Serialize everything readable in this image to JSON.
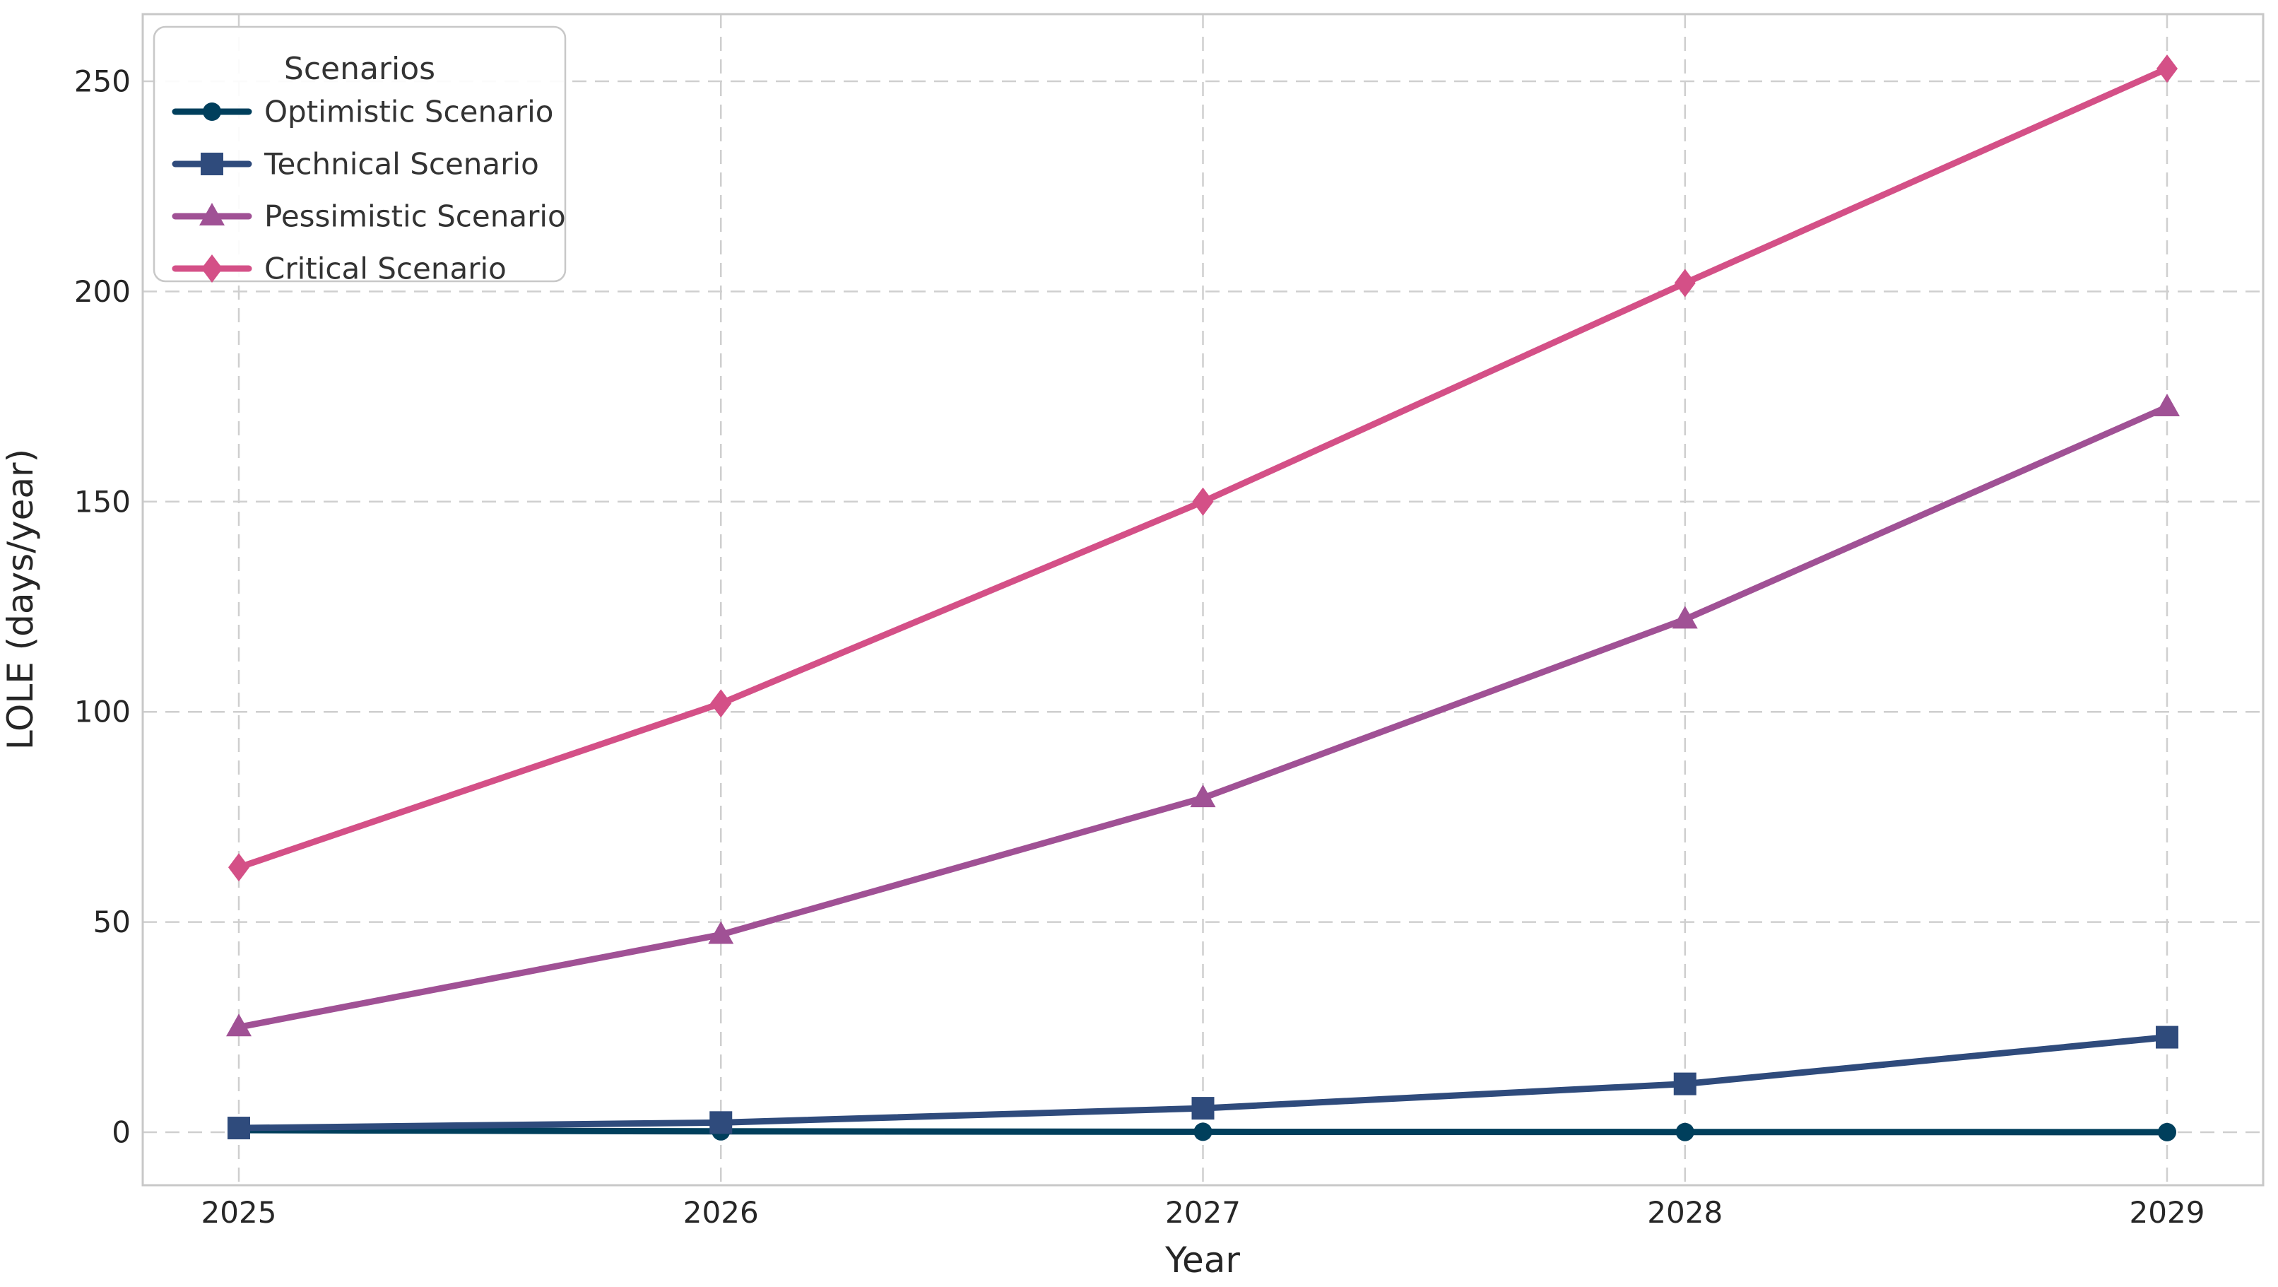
{
  "chart_data": {
    "type": "line",
    "title": "",
    "xlabel": "Year",
    "ylabel": "LOLE (days/year)",
    "x": [
      2025,
      2026,
      2027,
      2028,
      2029
    ],
    "xtick_labels": [
      "2025",
      "2026",
      "2027",
      "2028",
      "2029"
    ],
    "yticks": [
      0,
      50,
      100,
      150,
      200,
      250
    ],
    "ylim": [
      -13,
      266
    ],
    "grid": true,
    "grid_style": "dashed",
    "grid_color": "#cfcfcf",
    "spine_color": "#c8c8c8",
    "background_color": "#ffffff",
    "legend": {
      "title": "Scenarios",
      "position": "upper-left"
    },
    "series": [
      {
        "name": "Optimistic Scenario",
        "color": "#003f5c",
        "marker": "circle",
        "values": [
          0.5,
          0.2,
          0.1,
          0.05,
          0.02
        ]
      },
      {
        "name": "Technical Scenario",
        "color": "#2f4b7c",
        "marker": "square",
        "values": [
          1.0,
          2.3,
          5.7,
          11.5,
          22.6
        ]
      },
      {
        "name": "Pessimistic Scenario",
        "color": "#a05195",
        "marker": "triangle",
        "values": [
          25,
          47,
          79.5,
          122,
          172.5
        ]
      },
      {
        "name": "Critical Scenario",
        "color": "#d45087",
        "marker": "diamond",
        "values": [
          63,
          102,
          150,
          202,
          253
        ]
      }
    ]
  }
}
